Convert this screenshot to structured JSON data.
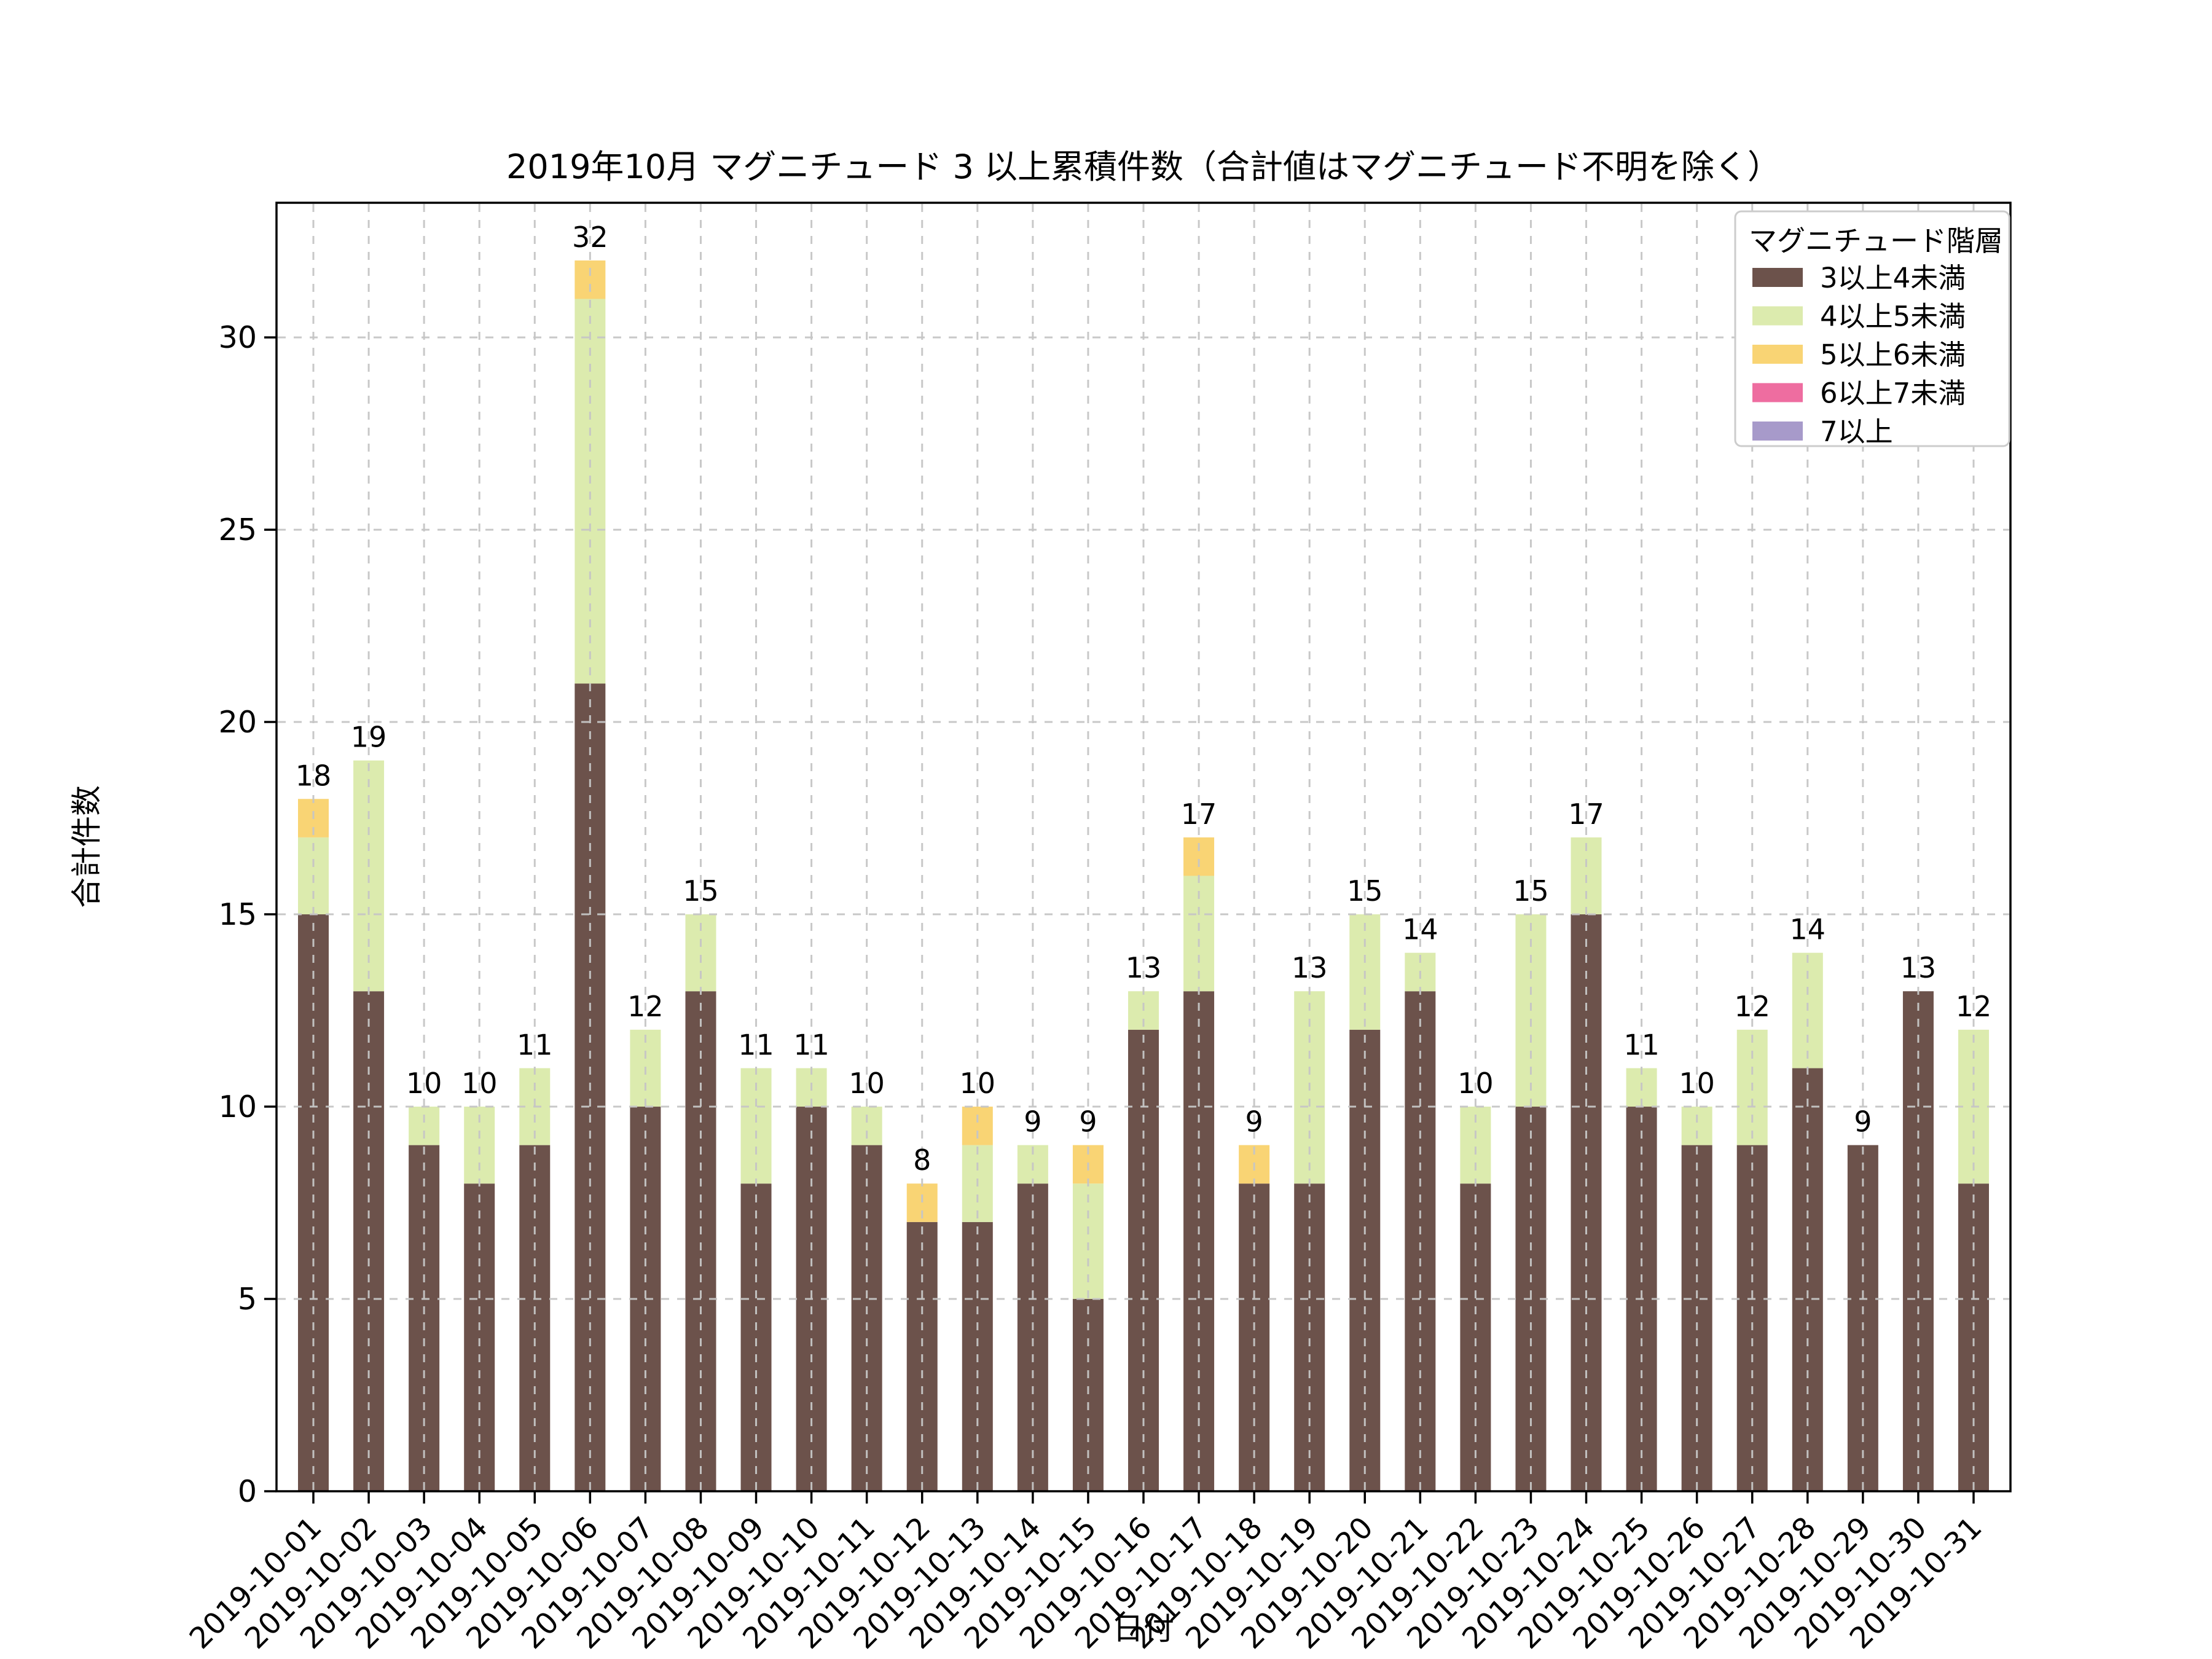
{
  "title": "2019年10月 マグニチュード 3 以上累積件数（合計値はマグニチュード不明を除く）",
  "axes": {
    "x_label": "日付",
    "y_label": "合計件数",
    "y_ticks": [
      0,
      5,
      10,
      15,
      20,
      25,
      30
    ]
  },
  "legend": {
    "title": "マグニチュード階層",
    "items": [
      {
        "label": "3以上4未満",
        "color": "#6C524B"
      },
      {
        "label": "4以上5未満",
        "color": "#DCEBAE"
      },
      {
        "label": "5以上6未満",
        "color": "#F9D474"
      },
      {
        "label": "6以上7未満",
        "color": "#EE6DA0"
      },
      {
        "label": "7以上",
        "color": "#A79ACA"
      }
    ]
  },
  "chart_data": {
    "type": "bar",
    "stacked": true,
    "title": "2019年10月 マグニチュード 3 以上累積件数（合計値はマグニチュード不明を除く）",
    "xlabel": "日付",
    "ylabel": "合計件数",
    "ylim": [
      0,
      33.5
    ],
    "grid": true,
    "legend_position": "upper right",
    "categories": [
      "2019-10-01",
      "2019-10-02",
      "2019-10-03",
      "2019-10-04",
      "2019-10-05",
      "2019-10-06",
      "2019-10-07",
      "2019-10-08",
      "2019-10-09",
      "2019-10-10",
      "2019-10-11",
      "2019-10-12",
      "2019-10-13",
      "2019-10-14",
      "2019-10-15",
      "2019-10-16",
      "2019-10-17",
      "2019-10-18",
      "2019-10-19",
      "2019-10-20",
      "2019-10-21",
      "2019-10-22",
      "2019-10-23",
      "2019-10-24",
      "2019-10-25",
      "2019-10-26",
      "2019-10-27",
      "2019-10-28",
      "2019-10-29",
      "2019-10-30",
      "2019-10-31"
    ],
    "series": [
      {
        "name": "3以上4未満",
        "color": "#6C524B",
        "values": [
          15,
          13,
          9,
          8,
          9,
          21,
          10,
          13,
          8,
          10,
          9,
          7,
          7,
          8,
          5,
          12,
          13,
          8,
          8,
          12,
          13,
          8,
          10,
          15,
          10,
          9,
          9,
          11,
          9,
          13,
          8
        ]
      },
      {
        "name": "4以上5未満",
        "color": "#DCEBAE",
        "values": [
          2,
          6,
          1,
          2,
          2,
          10,
          2,
          2,
          3,
          1,
          1,
          0,
          2,
          1,
          3,
          1,
          3,
          0,
          5,
          3,
          1,
          2,
          5,
          2,
          1,
          1,
          3,
          3,
          0,
          0,
          4
        ]
      },
      {
        "name": "5以上6未満",
        "color": "#F9D474",
        "values": [
          1,
          0,
          0,
          0,
          0,
          1,
          0,
          0,
          0,
          0,
          0,
          1,
          1,
          0,
          1,
          0,
          1,
          1,
          0,
          0,
          0,
          0,
          0,
          0,
          0,
          0,
          0,
          0,
          0,
          0,
          0
        ]
      },
      {
        "name": "6以上7未満",
        "color": "#EE6DA0",
        "values": [
          0,
          0,
          0,
          0,
          0,
          0,
          0,
          0,
          0,
          0,
          0,
          0,
          0,
          0,
          0,
          0,
          0,
          0,
          0,
          0,
          0,
          0,
          0,
          0,
          0,
          0,
          0,
          0,
          0,
          0,
          0
        ]
      },
      {
        "name": "7以上",
        "color": "#A79ACA",
        "values": [
          0,
          0,
          0,
          0,
          0,
          0,
          0,
          0,
          0,
          0,
          0,
          0,
          0,
          0,
          0,
          0,
          0,
          0,
          0,
          0,
          0,
          0,
          0,
          0,
          0,
          0,
          0,
          0,
          0,
          0,
          0
        ]
      }
    ],
    "totals": [
      18,
      19,
      10,
      10,
      11,
      32,
      12,
      15,
      11,
      11,
      10,
      8,
      10,
      9,
      9,
      13,
      17,
      9,
      13,
      15,
      14,
      10,
      15,
      17,
      11,
      10,
      12,
      14,
      9,
      13,
      12
    ]
  }
}
